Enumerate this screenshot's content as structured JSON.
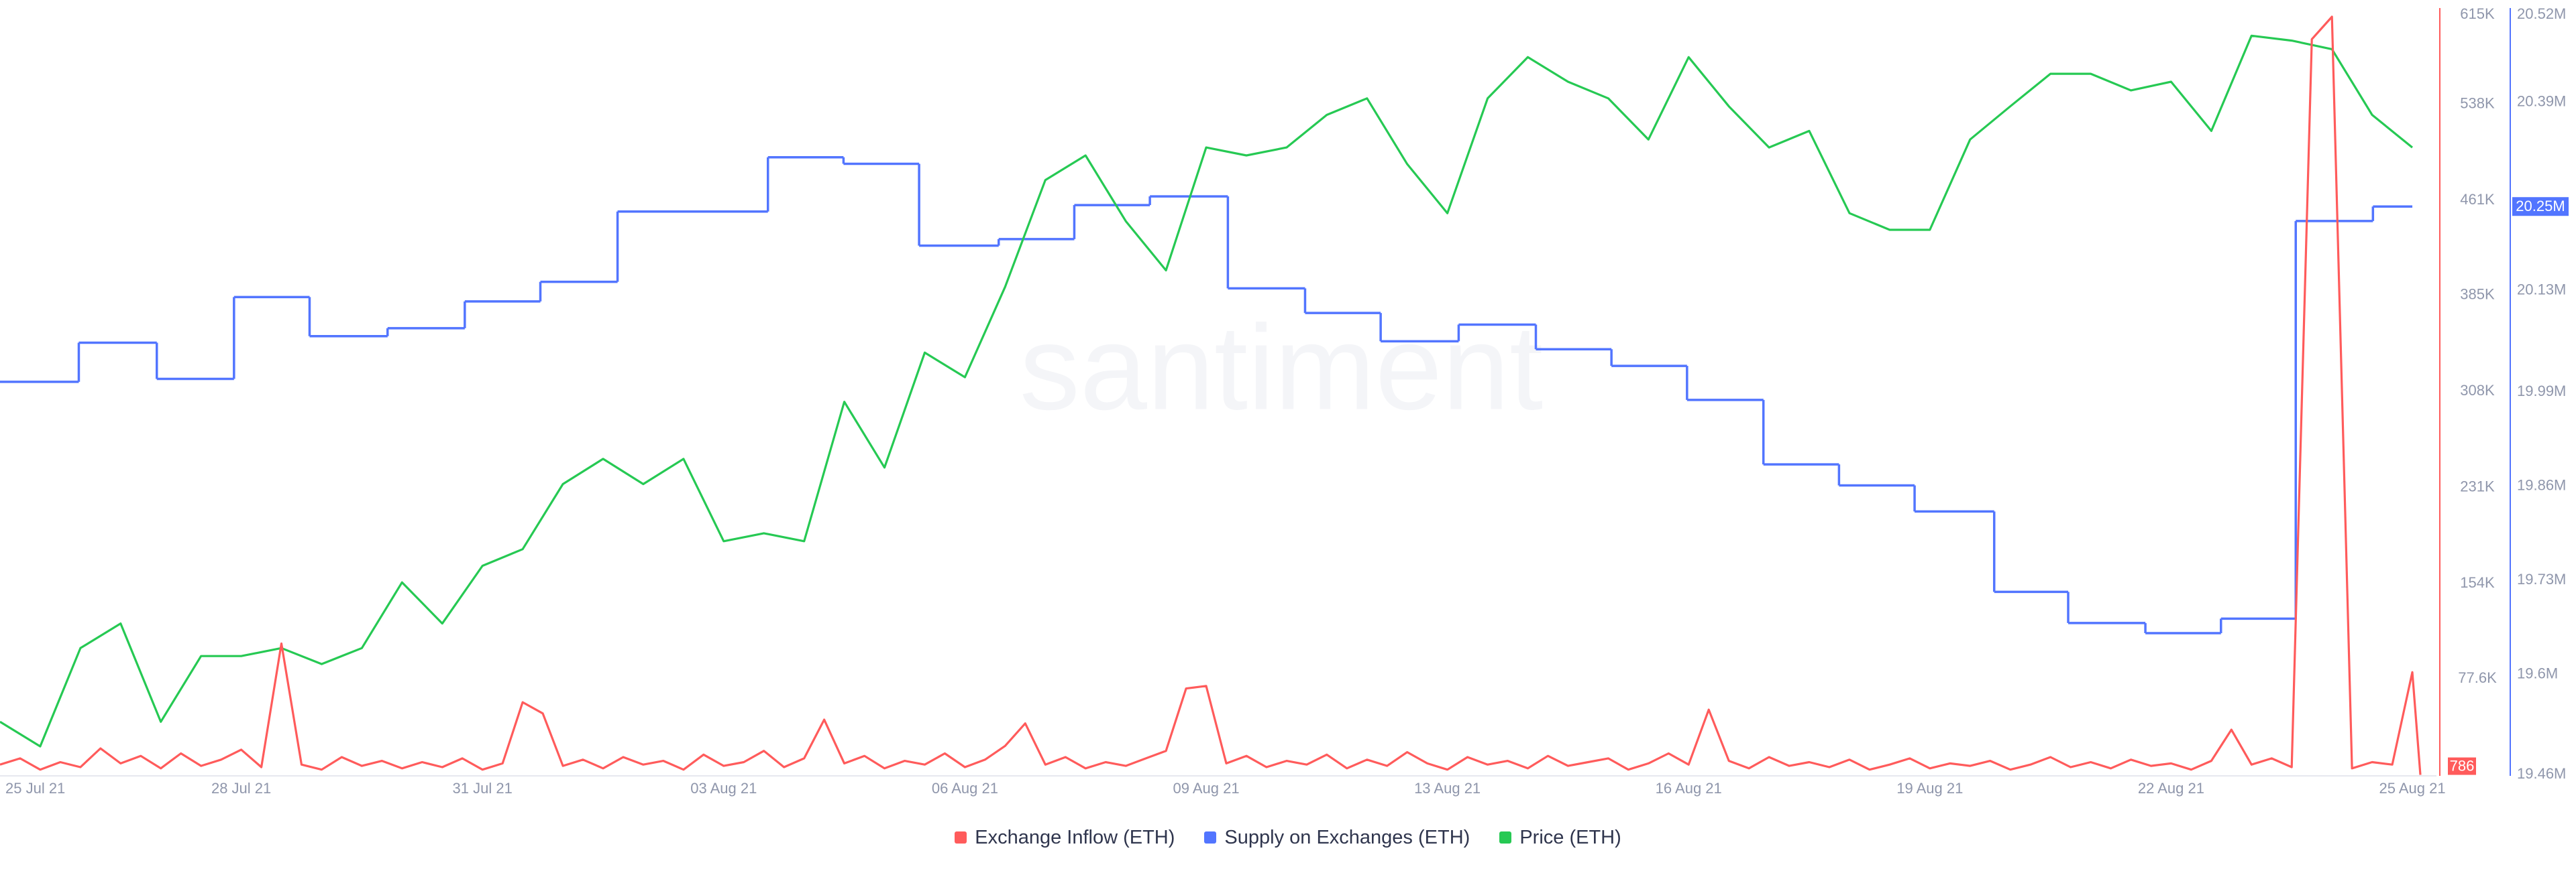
{
  "chart_data": {
    "type": "line",
    "watermark": "santiment",
    "grid": false,
    "xlim": [
      0,
      30.3
    ],
    "xticks": [
      {
        "value": 0,
        "label": "25 Jul 21"
      },
      {
        "value": 3,
        "label": "28 Jul 21"
      },
      {
        "value": 6,
        "label": "31 Jul 21"
      },
      {
        "value": 9,
        "label": "03 Aug 21"
      },
      {
        "value": 12,
        "label": "06 Aug 21"
      },
      {
        "value": 15,
        "label": "09 Aug 21"
      },
      {
        "value": 18,
        "label": "13 Aug 21"
      },
      {
        "value": 21,
        "label": "16 Aug 21"
      },
      {
        "value": 24,
        "label": "19 Aug 21"
      },
      {
        "value": 27,
        "label": "22 Aug 21"
      },
      {
        "value": 30,
        "label": "25 Aug 21"
      }
    ],
    "ylim": [
      0,
      615000
    ],
    "yticks": [
      {
        "value": 77600,
        "label": "77.6K"
      },
      {
        "value": 154000,
        "label": "154K"
      },
      {
        "value": 231000,
        "label": "231K"
      },
      {
        "value": 308000,
        "label": "308K"
      },
      {
        "value": 385000,
        "label": "385K"
      },
      {
        "value": 461000,
        "label": "461K"
      },
      {
        "value": 538000,
        "label": "538K"
      },
      {
        "value": 615000,
        "label": "615K"
      }
    ],
    "y2lim": [
      19460000,
      20520000
    ],
    "y2ticks": [
      {
        "value": 19460000,
        "label": "19.46M"
      },
      {
        "value": 19600000,
        "label": "19.6M"
      },
      {
        "value": 19730000,
        "label": "19.73M"
      },
      {
        "value": 19860000,
        "label": "19.86M"
      },
      {
        "value": 19990000,
        "label": "19.99M"
      },
      {
        "value": 20130000,
        "label": "20.13M"
      },
      {
        "value": 20390000,
        "label": "20.39M"
      },
      {
        "value": 20520000,
        "label": "20.52M"
      }
    ],
    "y3lim": [
      2150,
      3400
    ],
    "series": [
      {
        "name": "Exchange Inflow (ETH)",
        "color": "#ff5b5b",
        "axis": "y",
        "x": [
          0,
          0.25,
          0.5,
          0.75,
          1,
          1.25,
          1.5,
          1.75,
          2,
          2.25,
          2.5,
          2.75,
          3,
          3.25,
          3.5,
          3.75,
          4,
          4.25,
          4.5,
          4.75,
          5,
          5.25,
          5.5,
          5.75,
          6,
          6.25,
          6.5,
          6.75,
          7,
          7.25,
          7.5,
          7.75,
          8,
          8.25,
          8.5,
          8.75,
          9,
          9.25,
          9.5,
          9.75,
          10,
          10.25,
          10.5,
          10.75,
          11,
          11.25,
          11.5,
          11.75,
          12,
          12.25,
          12.5,
          12.75,
          13,
          13.25,
          13.5,
          13.75,
          14,
          14.25,
          14.5,
          14.75,
          15,
          15.25,
          15.5,
          15.75,
          16,
          16.25,
          16.5,
          16.75,
          17,
          17.25,
          17.5,
          17.75,
          18,
          18.25,
          18.5,
          18.75,
          19,
          19.25,
          19.5,
          19.75,
          20,
          20.25,
          20.5,
          20.75,
          21,
          21.25,
          21.5,
          21.75,
          22,
          22.25,
          22.5,
          22.75,
          23,
          23.25,
          23.5,
          23.75,
          24,
          24.25,
          24.5,
          24.75,
          25,
          25.25,
          25.5,
          25.75,
          26,
          26.25,
          26.5,
          26.75,
          27,
          27.25,
          27.5,
          27.75,
          28,
          28.25,
          28.5,
          28.75,
          29,
          29.25,
          29.5,
          29.75,
          30,
          30.1
        ],
        "values": [
          9000,
          14000,
          5000,
          11000,
          7000,
          22000,
          10000,
          16000,
          6000,
          18000,
          8000,
          13000,
          21000,
          7000,
          106000,
          9000,
          5000,
          15000,
          8000,
          12000,
          6000,
          11000,
          7000,
          14000,
          5000,
          10000,
          59000,
          50000,
          8000,
          13000,
          6000,
          15000,
          9000,
          12000,
          5000,
          17000,
          8000,
          11000,
          20000,
          7000,
          14000,
          45000,
          10000,
          16000,
          6000,
          12000,
          9000,
          18000,
          7000,
          13000,
          24000,
          42000,
          9000,
          15000,
          6000,
          11000,
          8000,
          14000,
          20000,
          70000,
          72000,
          10000,
          16000,
          7000,
          12000,
          9000,
          17000,
          6000,
          13000,
          8000,
          19000,
          10000,
          5000,
          15000,
          9000,
          12000,
          6000,
          16000,
          8000,
          11000,
          14000,
          5000,
          10000,
          18000,
          9000,
          53000,
          12000,
          6000,
          15000,
          8000,
          11000,
          7000,
          13000,
          5000,
          9000,
          14000,
          6000,
          10000,
          8000,
          12000,
          5000,
          9000,
          15000,
          7000,
          11000,
          6000,
          13000,
          8000,
          10000,
          5000,
          12000,
          37000,
          9000,
          14000,
          7000,
          590000,
          608000,
          6000,
          11000,
          9000,
          83000,
          786
        ]
      },
      {
        "name": "Supply on Exchanges (ETH)",
        "color": "#5275ff",
        "axis": "y2",
        "drawstyle": "steps-post",
        "x": [
          0,
          0.98,
          1.95,
          2.91,
          3.85,
          4.82,
          5.78,
          6.72,
          7.68,
          9.55,
          10.49,
          11.43,
          12.42,
          13.36,
          14.3,
          15.27,
          16.23,
          17.17,
          18.14,
          19.1,
          20.04,
          20.98,
          21.93,
          22.87,
          23.81,
          24.8,
          25.72,
          26.68,
          27.62,
          28.55,
          29.51
        ],
        "values": [
          20004000,
          20058000,
          20008000,
          20121000,
          20067000,
          20078000,
          20115000,
          20142000,
          20239000,
          20314000,
          20305000,
          20192000,
          20201000,
          20248000,
          20260000,
          20133000,
          20099000,
          20060000,
          20083000,
          20049000,
          20026000,
          19979000,
          19890000,
          19861000,
          19825000,
          19714000,
          19671000,
          19657000,
          19677000,
          20226000,
          20246000
        ],
        "value_labels": [
          null,
          null,
          null,
          null,
          null,
          null,
          null,
          null,
          null,
          null,
          null,
          null,
          null,
          null,
          null,
          null,
          null,
          null,
          null,
          null,
          null,
          null,
          null,
          null,
          null,
          null,
          null,
          null,
          null,
          null,
          "20.25M"
        ]
      },
      {
        "name": "Price (ETH)",
        "color": "#26c953",
        "axis": "y3",
        "x": [
          0,
          0.5,
          1,
          1.5,
          2,
          2.5,
          3,
          3.5,
          4,
          4.5,
          5,
          5.5,
          6,
          6.5,
          7,
          7.5,
          8,
          8.5,
          9,
          9.5,
          10,
          10.5,
          11,
          11.5,
          12,
          12.5,
          13,
          13.5,
          14,
          14.5,
          15,
          15.5,
          16,
          16.5,
          17,
          17.5,
          18,
          18.5,
          19,
          19.5,
          20,
          20.5,
          21,
          21.5,
          22,
          22.5,
          23,
          23.5,
          24,
          24.5,
          25,
          25.5,
          26,
          26.5,
          27,
          27.5,
          28,
          28.5,
          29,
          29.5,
          30
        ],
        "values": [
          2238,
          2198,
          2358,
          2398,
          2238,
          2345,
          2345,
          2358,
          2332,
          2358,
          2465,
          2398,
          2492,
          2519,
          2625,
          2666,
          2625,
          2666,
          2532,
          2545,
          2532,
          2759,
          2652,
          2839,
          2799,
          2946,
          3120,
          3160,
          3053,
          2973,
          3173,
          3160,
          3173,
          3226,
          3253,
          3146,
          3066,
          3253,
          3320,
          3280,
          3253,
          3186,
          3320,
          3240,
          3173,
          3200,
          3066,
          3039,
          3039,
          3186,
          3240,
          3293,
          3293,
          3266,
          3280,
          3200,
          3355,
          3347,
          3333,
          3226,
          3173
        ]
      }
    ]
  }
}
